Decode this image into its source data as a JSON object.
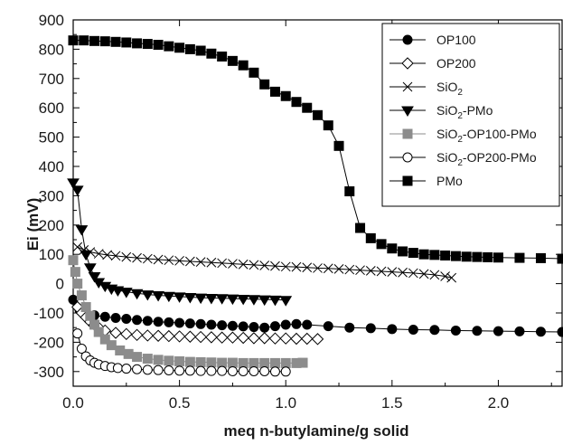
{
  "chart_data": {
    "type": "scatter",
    "xlabel": "meq n-butylamine/g solid",
    "ylabel": "Ei (mV)",
    "xlim": [
      0,
      2.3
    ],
    "ylim": [
      -350,
      900
    ],
    "x_ticks": [
      "0.0",
      "0.5",
      "1.0",
      "1.5",
      "2.0"
    ],
    "y_ticks": [
      "900",
      "800",
      "700",
      "600",
      "500",
      "400",
      "300",
      "200",
      "100",
      "0",
      "-100",
      "-200",
      "-300"
    ],
    "grid": false,
    "legend_position": "top-right",
    "series": [
      {
        "name": "OP100",
        "marker": "filled-circle",
        "color": "#000000",
        "x": [
          0.0,
          0.03,
          0.06,
          0.1,
          0.15,
          0.2,
          0.25,
          0.3,
          0.35,
          0.4,
          0.45,
          0.5,
          0.55,
          0.6,
          0.65,
          0.7,
          0.75,
          0.8,
          0.85,
          0.9,
          0.95,
          1.0,
          1.05,
          1.1,
          1.2,
          1.3,
          1.4,
          1.5,
          1.6,
          1.7,
          1.8,
          1.9,
          2.0,
          2.1,
          2.2,
          2.3
        ],
        "y": [
          -55,
          -90,
          -100,
          -108,
          -113,
          -117,
          -120,
          -124,
          -127,
          -130,
          -132,
          -134,
          -136,
          -138,
          -140,
          -142,
          -144,
          -146,
          -148,
          -150,
          -145,
          -140,
          -138,
          -140,
          -145,
          -150,
          -152,
          -155,
          -157,
          -158,
          -160,
          -161,
          -162,
          -163,
          -164,
          -165
        ]
      },
      {
        "name": "OP200",
        "marker": "open-diamond",
        "color": "#000000",
        "x": [
          0.02,
          0.04,
          0.06,
          0.08,
          0.1,
          0.12,
          0.15,
          0.2,
          0.25,
          0.3,
          0.35,
          0.4,
          0.45,
          0.5,
          0.55,
          0.6,
          0.65,
          0.7,
          0.75,
          0.8,
          0.85,
          0.9,
          0.95,
          1.0,
          1.05,
          1.1,
          1.15
        ],
        "y": [
          -80,
          -100,
          -115,
          -130,
          -140,
          -150,
          -160,
          -168,
          -172,
          -175,
          -177,
          -178,
          -179,
          -180,
          -181,
          -182,
          -183,
          -184,
          -184,
          -185,
          -186,
          -186,
          -187,
          -187,
          -188,
          -188,
          -189
        ]
      },
      {
        "name": "SiO2",
        "marker": "x",
        "color": "#000000",
        "x": [
          0.02,
          0.05,
          0.08,
          0.12,
          0.16,
          0.2,
          0.25,
          0.3,
          0.35,
          0.4,
          0.45,
          0.5,
          0.55,
          0.6,
          0.65,
          0.7,
          0.75,
          0.8,
          0.85,
          0.9,
          0.95,
          1.0,
          1.05,
          1.1,
          1.15,
          1.2,
          1.25,
          1.3,
          1.35,
          1.4,
          1.45,
          1.5,
          1.55,
          1.6,
          1.65,
          1.7,
          1.75,
          1.78
        ],
        "y": [
          125,
          115,
          108,
          102,
          98,
          95,
          91,
          88,
          85,
          82,
          80,
          78,
          76,
          74,
          72,
          70,
          68,
          66,
          64,
          62,
          60,
          58,
          57,
          55,
          53,
          52,
          50,
          48,
          46,
          44,
          42,
          40,
          38,
          36,
          33,
          30,
          25,
          20
        ]
      },
      {
        "name": "SiO2-PMo",
        "marker": "filled-triangle-down",
        "color": "#000000",
        "x": [
          0.0,
          0.02,
          0.04,
          0.06,
          0.08,
          0.1,
          0.12,
          0.15,
          0.18,
          0.21,
          0.25,
          0.3,
          0.35,
          0.4,
          0.45,
          0.5,
          0.55,
          0.6,
          0.65,
          0.7,
          0.75,
          0.8,
          0.85,
          0.9,
          0.95,
          1.0
        ],
        "y": [
          345,
          320,
          185,
          100,
          55,
          25,
          5,
          -8,
          -17,
          -23,
          -28,
          -33,
          -37,
          -40,
          -42,
          -44,
          -46,
          -48,
          -49,
          -50,
          -51,
          -52,
          -53,
          -54,
          -55,
          -56
        ]
      },
      {
        "name": "SiO2-OP100-PMo",
        "marker": "filled-square",
        "color": "#8c8c8c",
        "x": [
          0.0,
          0.01,
          0.02,
          0.04,
          0.06,
          0.08,
          0.1,
          0.12,
          0.15,
          0.18,
          0.22,
          0.26,
          0.3,
          0.35,
          0.4,
          0.45,
          0.5,
          0.55,
          0.6,
          0.65,
          0.7,
          0.75,
          0.8,
          0.85,
          0.9,
          0.95,
          1.0,
          1.05,
          1.08
        ],
        "y": [
          80,
          40,
          0,
          -40,
          -80,
          -110,
          -140,
          -165,
          -190,
          -210,
          -228,
          -240,
          -250,
          -256,
          -260,
          -263,
          -265,
          -267,
          -268,
          -269,
          -270,
          -270,
          -271,
          -271,
          -271,
          -271,
          -271,
          -271,
          -270
        ]
      },
      {
        "name": "SiO2-OP200-PMo",
        "marker": "open-circle",
        "color": "#000000",
        "x": [
          0.02,
          0.04,
          0.06,
          0.08,
          0.1,
          0.12,
          0.15,
          0.18,
          0.21,
          0.25,
          0.3,
          0.35,
          0.4,
          0.45,
          0.5,
          0.55,
          0.6,
          0.65,
          0.7,
          0.75,
          0.8,
          0.85,
          0.9,
          0.95,
          1.0
        ],
        "y": [
          -170,
          -222,
          -248,
          -262,
          -270,
          -276,
          -281,
          -285,
          -288,
          -290,
          -292,
          -294,
          -295,
          -296,
          -297,
          -297,
          -298,
          -298,
          -298,
          -299,
          -299,
          -299,
          -299,
          -300,
          -300
        ]
      },
      {
        "name": "PMo",
        "marker": "filled-square",
        "color": "#000000",
        "x": [
          0.0,
          0.05,
          0.1,
          0.15,
          0.2,
          0.25,
          0.3,
          0.35,
          0.4,
          0.45,
          0.5,
          0.55,
          0.6,
          0.65,
          0.7,
          0.75,
          0.8,
          0.85,
          0.9,
          0.95,
          1.0,
          1.05,
          1.1,
          1.15,
          1.2,
          1.25,
          1.3,
          1.35,
          1.4,
          1.45,
          1.5,
          1.55,
          1.6,
          1.65,
          1.7,
          1.75,
          1.8,
          1.85,
          1.9,
          1.95,
          2.0,
          2.1,
          2.2,
          2.3
        ],
        "y": [
          830,
          830,
          828,
          827,
          825,
          823,
          820,
          818,
          815,
          810,
          805,
          800,
          795,
          785,
          775,
          760,
          745,
          720,
          680,
          655,
          640,
          620,
          600,
          575,
          540,
          470,
          315,
          190,
          155,
          135,
          120,
          110,
          105,
          100,
          98,
          96,
          94,
          92,
          91,
          90,
          89,
          88,
          87,
          85
        ]
      }
    ]
  },
  "legend": {
    "entries": [
      {
        "base": "OP100",
        "sub": "",
        "rest": ""
      },
      {
        "base": "OP200",
        "sub": "",
        "rest": ""
      },
      {
        "base": "SiO",
        "sub": "2",
        "rest": ""
      },
      {
        "base": "SiO",
        "sub": "2",
        "rest": "-PMo"
      },
      {
        "base": "SiO",
        "sub": "2",
        "rest": "-OP100-PMo"
      },
      {
        "base": "SiO",
        "sub": "2",
        "rest": "-OP200-PMo"
      },
      {
        "base": "PMo",
        "sub": "",
        "rest": ""
      }
    ]
  }
}
